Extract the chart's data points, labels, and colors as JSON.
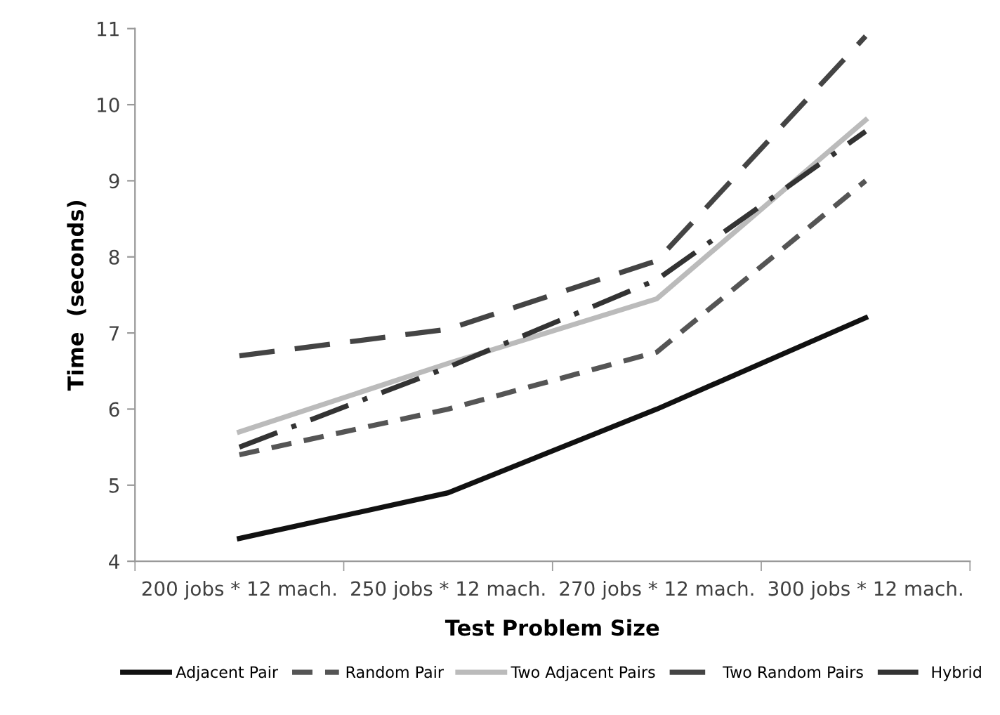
{
  "chart_data": {
    "type": "line",
    "xlabel": "Test Problem Size",
    "ylabel": "Time  (seconds)",
    "categories": [
      "200 jobs * 12 mach.",
      "250 jobs * 12 mach.",
      "270 jobs * 12 mach.",
      "300 jobs * 12 mach."
    ],
    "series": [
      {
        "name": "Adjacent Pair",
        "color": "#111111",
        "line_style": "solid",
        "values": [
          4.3,
          4.9,
          6.0,
          7.2
        ]
      },
      {
        "name": "Random Pair",
        "color": "#555555",
        "line_style": "dashed",
        "values": [
          5.4,
          6.0,
          6.75,
          9.0
        ]
      },
      {
        "name": "Two Adjacent Pairs",
        "color": "#bbbbbb",
        "line_style": "solid",
        "values": [
          5.7,
          6.6,
          7.45,
          9.8
        ]
      },
      {
        "name": "Two Random Pairs",
        "color": "#444444",
        "line_style": "longdashed",
        "values": [
          6.7,
          7.05,
          7.95,
          10.9
        ]
      },
      {
        "name": "Hybrid",
        "color": "#333333",
        "line_style": "dashdot",
        "values": [
          5.5,
          6.55,
          7.7,
          9.65
        ]
      }
    ],
    "ylim": [
      4,
      11
    ],
    "yticks": [
      4,
      5,
      6,
      7,
      8,
      9,
      10,
      11
    ],
    "grid": false,
    "legend": "bottom",
    "marker": "none"
  }
}
